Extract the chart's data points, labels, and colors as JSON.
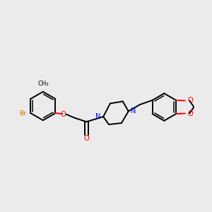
{
  "background_color": "#ebebeb",
  "bond_color": "#000000",
  "nitrogen_color": "#0000ff",
  "oxygen_color": "#ff0000",
  "bromine_color": "#cc7700",
  "figsize": [
    3.0,
    3.0
  ],
  "dpi": 100,
  "xlim": [
    0,
    10
  ],
  "ylim": [
    2,
    8
  ]
}
